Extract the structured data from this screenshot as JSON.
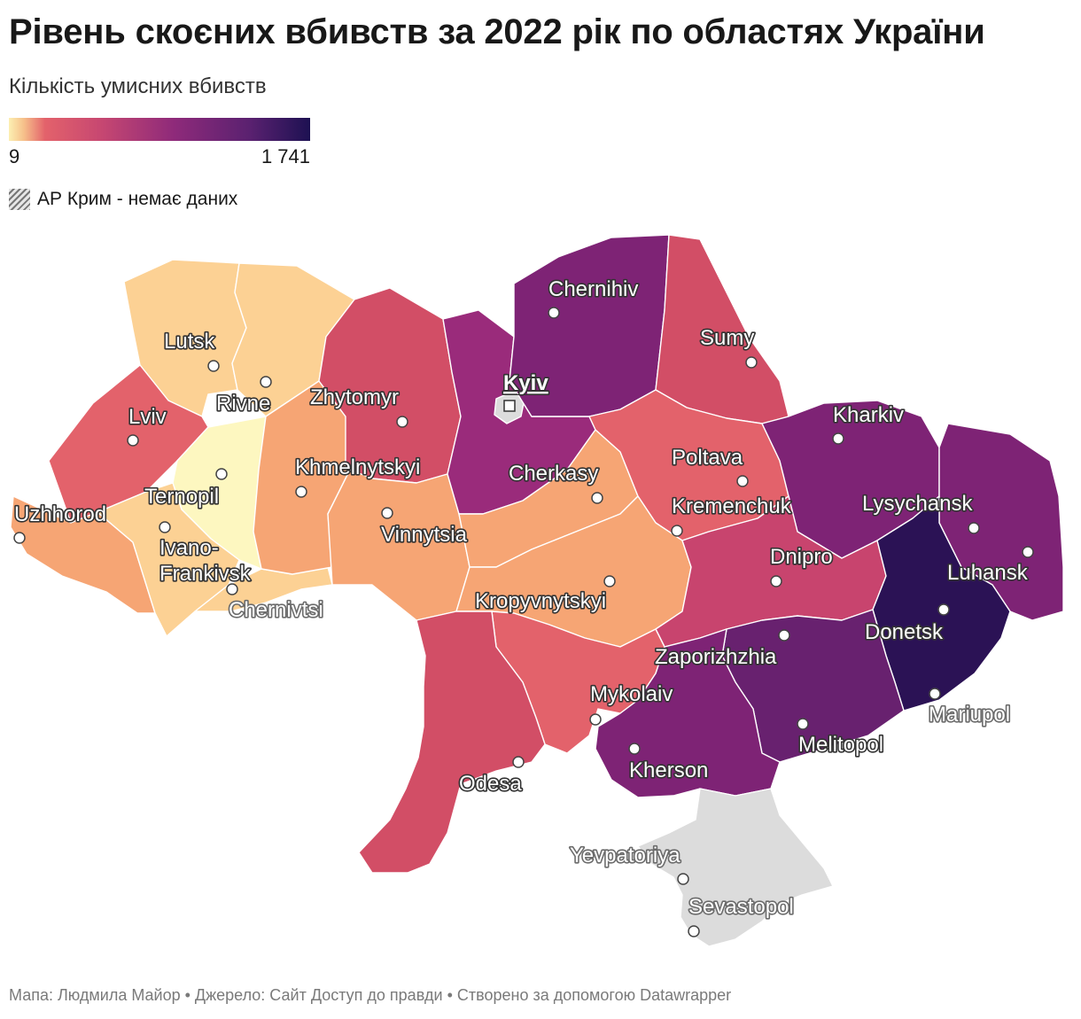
{
  "title": "Рівень скоєних вбивств за 2022 рік по областях України",
  "subtitle": "Кількість умисних вбивств",
  "legend": {
    "min": "9",
    "max": "1 741"
  },
  "no_data_label": "АР Крим - немає даних",
  "footer": "Мапа: Людмила Майор • Джерело: Сайт Доступ до правди • Створено за допомогою Datawrapper",
  "colors": {
    "lightest": "#fdf7c0",
    "light": "#fcd194",
    "orange": "#f6a574",
    "salmon": "#e3626b",
    "rose": "#d24e66",
    "raspberry": "#c8446e",
    "magenta": "#9a2b7b",
    "purple": "#7e2375",
    "deep_purple": "#68216f",
    "darkest": "#2b1255",
    "no_data": "#dcdcdc"
  },
  "cities": [
    {
      "name": "Chernihiv"
    },
    {
      "name": "Sumy"
    },
    {
      "name": "Kyiv"
    },
    {
      "name": "Lutsk"
    },
    {
      "name": "Rivne"
    },
    {
      "name": "Zhytomyr"
    },
    {
      "name": "Lviv"
    },
    {
      "name": "Kharkiv"
    },
    {
      "name": "Khmelnytskyi"
    },
    {
      "name": "Poltava"
    },
    {
      "name": "Cherkasy"
    },
    {
      "name": "Ternopil"
    },
    {
      "name": "Lysychansk"
    },
    {
      "name": "Kremenchuk"
    },
    {
      "name": "Uzhhorod"
    },
    {
      "name": "Vinnytsia"
    },
    {
      "name": "Ivano-"
    },
    {
      "name": "Dnipro"
    },
    {
      "name": "Frankivsk"
    },
    {
      "name": "Luhansk"
    },
    {
      "name": "Chernivtsi"
    },
    {
      "name": "Kropyvnytskyi"
    },
    {
      "name": "Donetsk"
    },
    {
      "name": "Zaporizhzhia"
    },
    {
      "name": "Mykolaiv"
    },
    {
      "name": "Mariupol"
    },
    {
      "name": "Melitopol"
    },
    {
      "name": "Kherson"
    },
    {
      "name": "Odesa"
    },
    {
      "name": "Yevpatoriya"
    },
    {
      "name": "Sevastopol"
    }
  ]
}
